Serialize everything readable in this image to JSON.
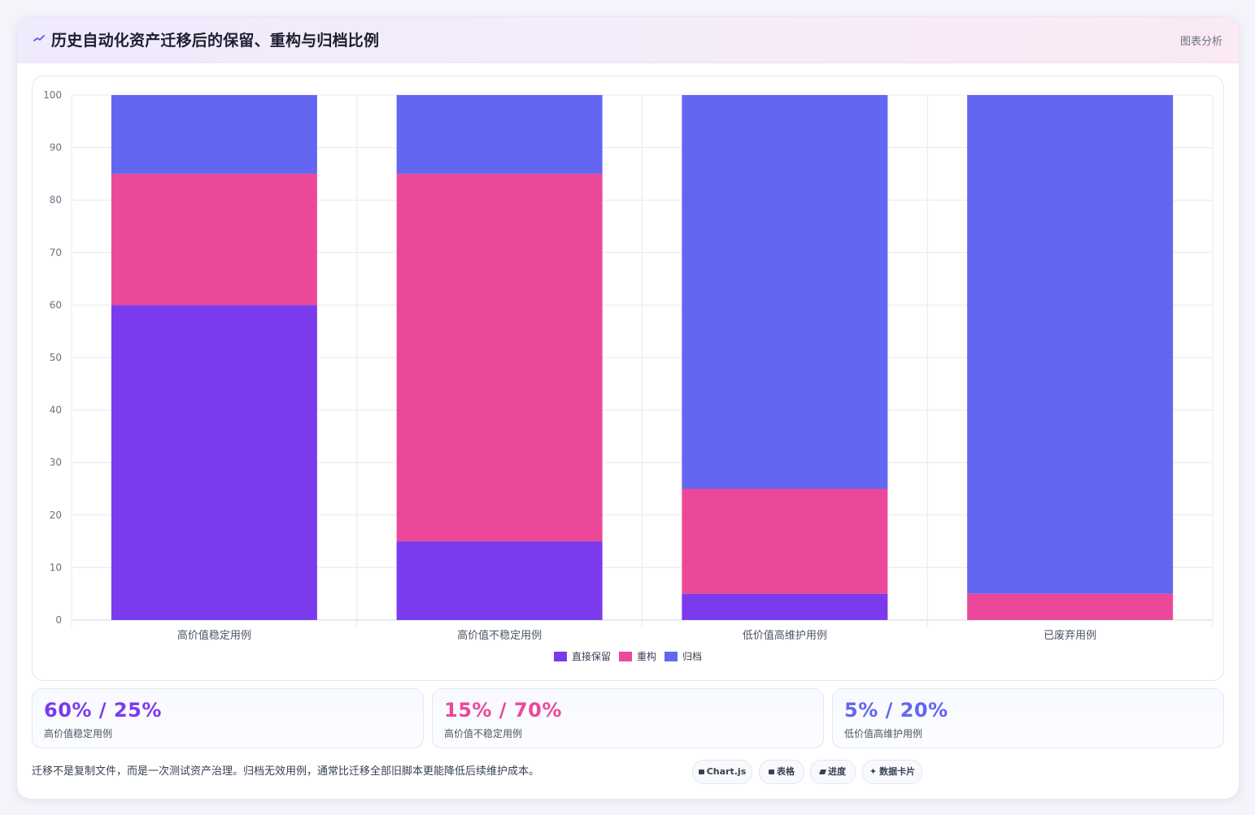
{
  "header": {
    "title": "历史自动化资产迁移后的保留、重构与归档比例",
    "action_label": "图表分析",
    "icon": "trend-line-icon"
  },
  "chart_data": {
    "type": "bar",
    "stacked": true,
    "categories": [
      "高价值稳定用例",
      "高价值不稳定用例",
      "低价值高维护用例",
      "已废弃用例"
    ],
    "series": [
      {
        "name": "直接保留",
        "color": "#7c3aed",
        "values": [
          60,
          15,
          5,
          0
        ]
      },
      {
        "name": "重构",
        "color": "#ec4899",
        "values": [
          25,
          70,
          20,
          5
        ]
      },
      {
        "name": "归档",
        "color": "#6366f1",
        "values": [
          15,
          15,
          75,
          95
        ]
      }
    ],
    "ylim": [
      0,
      100
    ],
    "yticks": [
      "0",
      "10",
      "20",
      "30",
      "40",
      "50",
      "60",
      "70",
      "80",
      "90",
      "100"
    ],
    "grid": true,
    "legend": "bottom"
  },
  "stats": [
    {
      "value": "60% / 25%",
      "label": "高价值稳定用例",
      "color": "#7c3aed"
    },
    {
      "value": "15% / 70%",
      "label": "高价值不稳定用例",
      "color": "#ec4899"
    },
    {
      "value": "5% / 20%",
      "label": "低价值高维护用例",
      "color": "#6366f1"
    }
  ],
  "footer": {
    "note": "迁移不是复制文件，而是一次测试资产治理。归档无效用例，通常比迁移全部旧脚本更能降低后续维护成本。",
    "chips": [
      {
        "label": "Chart.js",
        "icon": "chart-icon"
      },
      {
        "label": "表格",
        "icon": "table-icon"
      },
      {
        "label": "进度",
        "icon": "progress-icon"
      },
      {
        "label": "数据卡片",
        "icon": "sparkle-icon"
      }
    ]
  }
}
